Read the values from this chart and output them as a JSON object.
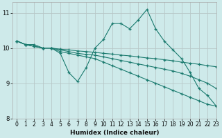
{
  "xlabel": "Humidex (Indice chaleur)",
  "bg_color": "#ceeaea",
  "grid_color": "#b8c8c8",
  "line_color": "#1a7a6e",
  "xlim": [
    -0.5,
    23
  ],
  "ylim": [
    8,
    11.3
  ],
  "yticks": [
    8,
    9,
    10,
    11
  ],
  "xticks": [
    0,
    1,
    2,
    3,
    4,
    5,
    6,
    7,
    8,
    9,
    10,
    11,
    12,
    13,
    14,
    15,
    16,
    17,
    18,
    19,
    20,
    21,
    22,
    23
  ],
  "lines": [
    {
      "x": [
        0,
        1,
        2,
        3,
        4,
        5,
        6,
        7,
        8,
        9,
        10,
        11,
        12,
        13,
        14,
        15,
        16,
        17,
        18,
        19,
        20,
        21,
        22,
        23
      ],
      "y": [
        10.2,
        10.1,
        10.1,
        10.0,
        10.0,
        9.85,
        9.3,
        9.05,
        9.45,
        10.0,
        10.25,
        10.7,
        10.7,
        10.55,
        10.8,
        11.1,
        10.55,
        10.2,
        9.95,
        9.7,
        9.3,
        8.85,
        8.65,
        8.35
      ]
    },
    {
      "x": [
        0,
        1,
        2,
        3,
        4,
        5,
        6,
        7,
        8,
        9,
        10,
        11,
        12,
        13,
        14,
        15,
        16,
        17,
        18,
        19,
        20,
        21,
        22,
        23
      ],
      "y": [
        10.2,
        10.1,
        10.05,
        10.0,
        10.0,
        9.97,
        9.95,
        9.92,
        9.9,
        9.88,
        9.85,
        9.83,
        9.8,
        9.78,
        9.75,
        9.72,
        9.7,
        9.67,
        9.64,
        9.6,
        9.57,
        9.54,
        9.5,
        9.47
      ]
    },
    {
      "x": [
        0,
        1,
        2,
        3,
        4,
        5,
        6,
        7,
        8,
        9,
        10,
        11,
        12,
        13,
        14,
        15,
        16,
        17,
        18,
        19,
        20,
        21,
        22,
        23
      ],
      "y": [
        10.2,
        10.1,
        10.05,
        10.0,
        10.0,
        9.95,
        9.9,
        9.85,
        9.82,
        9.8,
        9.75,
        9.7,
        9.65,
        9.6,
        9.55,
        9.5,
        9.45,
        9.4,
        9.35,
        9.28,
        9.2,
        9.1,
        9.0,
        8.85
      ]
    },
    {
      "x": [
        0,
        1,
        2,
        3,
        4,
        5,
        6,
        7,
        8,
        9,
        10,
        11,
        12,
        13,
        14,
        15,
        16,
        17,
        18,
        19,
        20,
        21,
        22,
        23
      ],
      "y": [
        10.2,
        10.1,
        10.05,
        10.0,
        10.0,
        9.9,
        9.85,
        9.8,
        9.75,
        9.7,
        9.6,
        9.5,
        9.4,
        9.3,
        9.2,
        9.1,
        9.0,
        8.9,
        8.8,
        8.7,
        8.6,
        8.5,
        8.4,
        8.35
      ]
    }
  ]
}
